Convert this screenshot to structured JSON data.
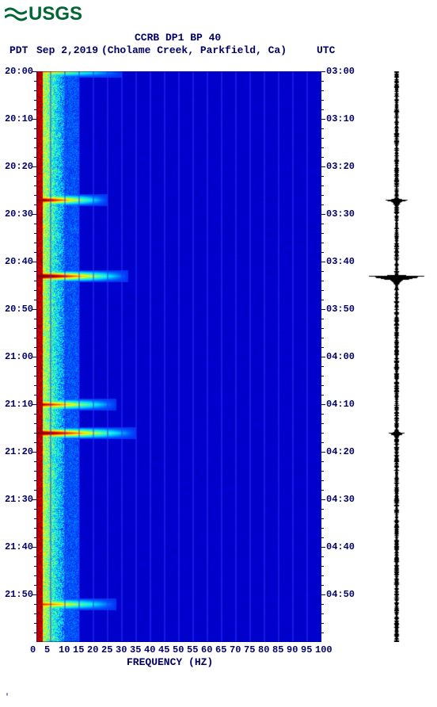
{
  "logo": {
    "text": "USGS",
    "color": "#006633"
  },
  "header": {
    "title": "CCRB DP1 BP 40",
    "tz_left": "PDT",
    "date": "Sep 2,2019",
    "location": "(Cholame Creek, Parkfield, Ca)",
    "tz_right": "UTC"
  },
  "axes": {
    "y_left_labels": [
      "20:00",
      "20:10",
      "20:20",
      "20:30",
      "20:40",
      "20:50",
      "21:00",
      "21:10",
      "21:20",
      "21:30",
      "21:40",
      "21:50"
    ],
    "y_right_labels": [
      "03:00",
      "03:10",
      "03:20",
      "03:30",
      "03:40",
      "03:50",
      "04:00",
      "04:10",
      "04:20",
      "04:30",
      "04:40",
      "04:50"
    ],
    "x_labels": [
      "0",
      "5",
      "10",
      "15",
      "20",
      "25",
      "30",
      "35",
      "40",
      "45",
      "50",
      "55",
      "60",
      "65",
      "70",
      "75",
      "80",
      "85",
      "90",
      "95",
      "100"
    ],
    "x_title": "FREQUENCY (HZ)"
  },
  "spectrogram": {
    "type": "spectrogram",
    "xlim": [
      0,
      100
    ],
    "ylim_minutes": [
      0,
      120
    ],
    "background_color": "#0000dd",
    "grid_color": "#3333ff",
    "colormap_stops": [
      "#000088",
      "#0000dd",
      "#0055ff",
      "#00ddff",
      "#55ff99",
      "#ffff00",
      "#ff8800",
      "#dd0000",
      "#880000"
    ],
    "grid_vertical_every": 5,
    "low_freq_band_width_hz": 10,
    "events": [
      {
        "t_min": 0,
        "freq_max": 30,
        "intensity": 0.6
      },
      {
        "t_min": 27,
        "freq_max": 25,
        "intensity": 0.9
      },
      {
        "t_min": 43,
        "freq_max": 32,
        "intensity": 1.0
      },
      {
        "t_min": 70,
        "freq_max": 28,
        "intensity": 0.8
      },
      {
        "t_min": 76,
        "freq_max": 35,
        "intensity": 0.95
      },
      {
        "t_min": 112,
        "freq_max": 28,
        "intensity": 0.7
      }
    ]
  },
  "waveform": {
    "type": "waveform",
    "color": "#000000",
    "baseline_amp": 0.05,
    "events": [
      {
        "t_min": 27,
        "amp": 0.35,
        "dur": 2
      },
      {
        "t_min": 43,
        "amp": 1.0,
        "dur": 3
      },
      {
        "t_min": 76,
        "amp": 0.25,
        "dur": 1.5
      }
    ]
  },
  "colors": {
    "text": "#000066",
    "bg": "#ffffff"
  }
}
